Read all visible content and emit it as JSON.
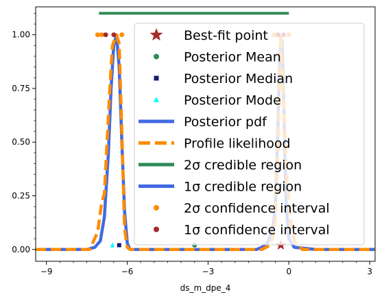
{
  "chart_data": {
    "type": "line",
    "title": "",
    "xlabel": "ds_m_dpe_4",
    "ylabel": "",
    "xlim": [
      -9.4,
      3.2
    ],
    "ylim": [
      -0.055,
      1.13
    ],
    "x_ticks": [
      -9,
      -6,
      -3,
      0,
      3
    ],
    "x_tick_labels": [
      "−9",
      "−6",
      "−3",
      "0",
      "3"
    ],
    "y_ticks": [
      0.0,
      0.25,
      0.5,
      0.75,
      1.0
    ],
    "y_tick_labels": [
      "0.00",
      "0.25",
      "0.50",
      "0.75",
      "1.00"
    ],
    "grid": false,
    "legend_position": "upper right",
    "legend_labels": {
      "best_fit": "Best-fit point",
      "mean": "Posterior Mean",
      "median": "Posterior Median",
      "mode": "Posterior Mode",
      "pdf": "Posterior pdf",
      "profile": "Profile likelihood",
      "cred2": "2σ credible region",
      "cred1": "1σ credible region",
      "conf2": "2σ confidence interval",
      "conf1": "1σ confidence interval"
    },
    "colors": {
      "best_fit": "#a52a2a",
      "mean": "#2e8b57",
      "median": "#191970",
      "mode": "#00ffff",
      "pdf": "#4169e1",
      "profile": "#ff8c00",
      "cred2": "#2e8b57",
      "cred1": "#4169e1",
      "conf2": "#ff8c00",
      "conf1": "#a52a2a"
    },
    "series": [
      {
        "name": "Posterior pdf",
        "x": [
          -9.4,
          -7.5,
          -7.2,
          -7.0,
          -6.85,
          -6.7,
          -6.6,
          -6.5,
          -6.4,
          -6.3,
          -6.2,
          -6.1,
          -6.0,
          -5.9,
          -5.5,
          -3.0,
          -1.5,
          -1.2,
          -1.0,
          -0.8,
          -0.6,
          -0.5,
          -0.4,
          -0.35,
          -0.3,
          -0.25,
          -0.2,
          -0.15,
          -0.1,
          0.0,
          0.2,
          1.0,
          3.2
        ],
        "y": [
          0.0,
          0.0,
          0.01,
          0.04,
          0.15,
          0.45,
          0.75,
          0.95,
          1.0,
          0.85,
          0.5,
          0.18,
          0.03,
          0.0,
          0.0,
          0.0,
          0.0,
          0.0,
          0.01,
          0.03,
          0.09,
          0.2,
          0.6,
          0.85,
          0.97,
          0.97,
          0.75,
          0.45,
          0.2,
          0.05,
          0.01,
          0.0,
          0.0
        ]
      },
      {
        "name": "Profile likelihood",
        "x": [
          -9.4,
          -7.4,
          -7.1,
          -6.95,
          -6.85,
          -6.75,
          -6.65,
          -6.55,
          -6.4,
          -6.3,
          -6.2,
          -6.1,
          -6.0,
          -5.9,
          -3.0,
          -1.5,
          -1.0,
          -0.7,
          -0.6,
          -0.5,
          -0.4,
          -0.3,
          -0.2,
          -0.1,
          0.0,
          0.1,
          0.2,
          0.5,
          3.2
        ],
        "y": [
          0.0,
          0.0,
          0.08,
          0.22,
          0.26,
          0.5,
          0.74,
          0.95,
          1.0,
          0.96,
          0.55,
          0.1,
          0.01,
          0.0,
          0.0,
          0.0,
          0.0,
          0.02,
          0.06,
          0.13,
          0.5,
          1.0,
          0.7,
          0.38,
          0.22,
          0.1,
          0.04,
          0.0,
          0.0
        ]
      }
    ],
    "points": {
      "best_fit": {
        "x": -0.3,
        "y": 0.02
      },
      "mean": {
        "x": -3.5,
        "y": 0.02
      },
      "median": {
        "x": -6.3,
        "y": 0.02
      },
      "mode": {
        "x": -6.55,
        "y": 0.02
      }
    },
    "credible_2sigma": {
      "y": 1.1,
      "from": -7.05,
      "to": 0.0
    },
    "confidence_2sigma": [
      {
        "x": -7.1,
        "y": 1.0
      },
      {
        "x": -6.95,
        "y": 1.0
      },
      {
        "x": -6.2,
        "y": 1.0
      },
      {
        "x": -0.55,
        "y": 1.0
      },
      {
        "x": 0.0,
        "y": 1.0
      }
    ],
    "confidence_1sigma": [
      {
        "x": -6.8,
        "y": 1.0
      },
      {
        "x": -6.5,
        "y": 1.0
      },
      {
        "x": -0.4,
        "y": 1.0
      },
      {
        "x": -0.2,
        "y": 1.0
      }
    ]
  }
}
